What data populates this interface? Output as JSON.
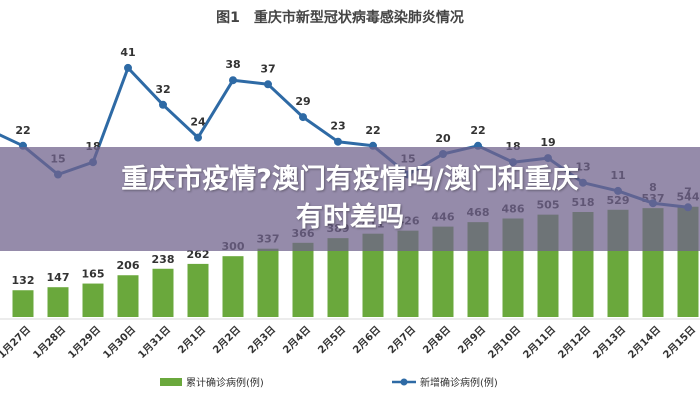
{
  "chart_data": {
    "type": "bar",
    "title": "图1　重庆市新型冠状病毒感染肺炎情况",
    "categories": [
      "1月27日",
      "1月28日",
      "1月29日",
      "1月30日",
      "1月31日",
      "2月1日",
      "2月2日",
      "2月3日",
      "2月4日",
      "2月5日",
      "2月6日",
      "2月7日",
      "2月8日",
      "2月9日",
      "2月10日",
      "2月11日",
      "2月12日",
      "2月13日",
      "2月14日",
      "2月15日"
    ],
    "series": [
      {
        "name": "累计确诊病例(例)",
        "type": "bar",
        "color": "#6aa83c",
        "values": [
          132,
          147,
          165,
          206,
          238,
          262,
          300,
          337,
          366,
          389,
          411,
          426,
          446,
          468,
          486,
          505,
          518,
          529,
          537,
          544
        ]
      },
      {
        "name": "新增确诊病例(例)",
        "type": "line",
        "color": "#2e6aa5",
        "values": [
          22,
          15,
          18,
          41,
          32,
          24,
          38,
          37,
          29,
          23,
          22,
          15,
          20,
          22,
          18,
          19,
          13,
          11,
          8,
          7
        ]
      }
    ],
    "first_label_prefix": "10"
  },
  "overlay": {
    "line1": "重庆市疫情?澳门有疫情吗/澳门和重庆",
    "line2": "有时差吗"
  }
}
